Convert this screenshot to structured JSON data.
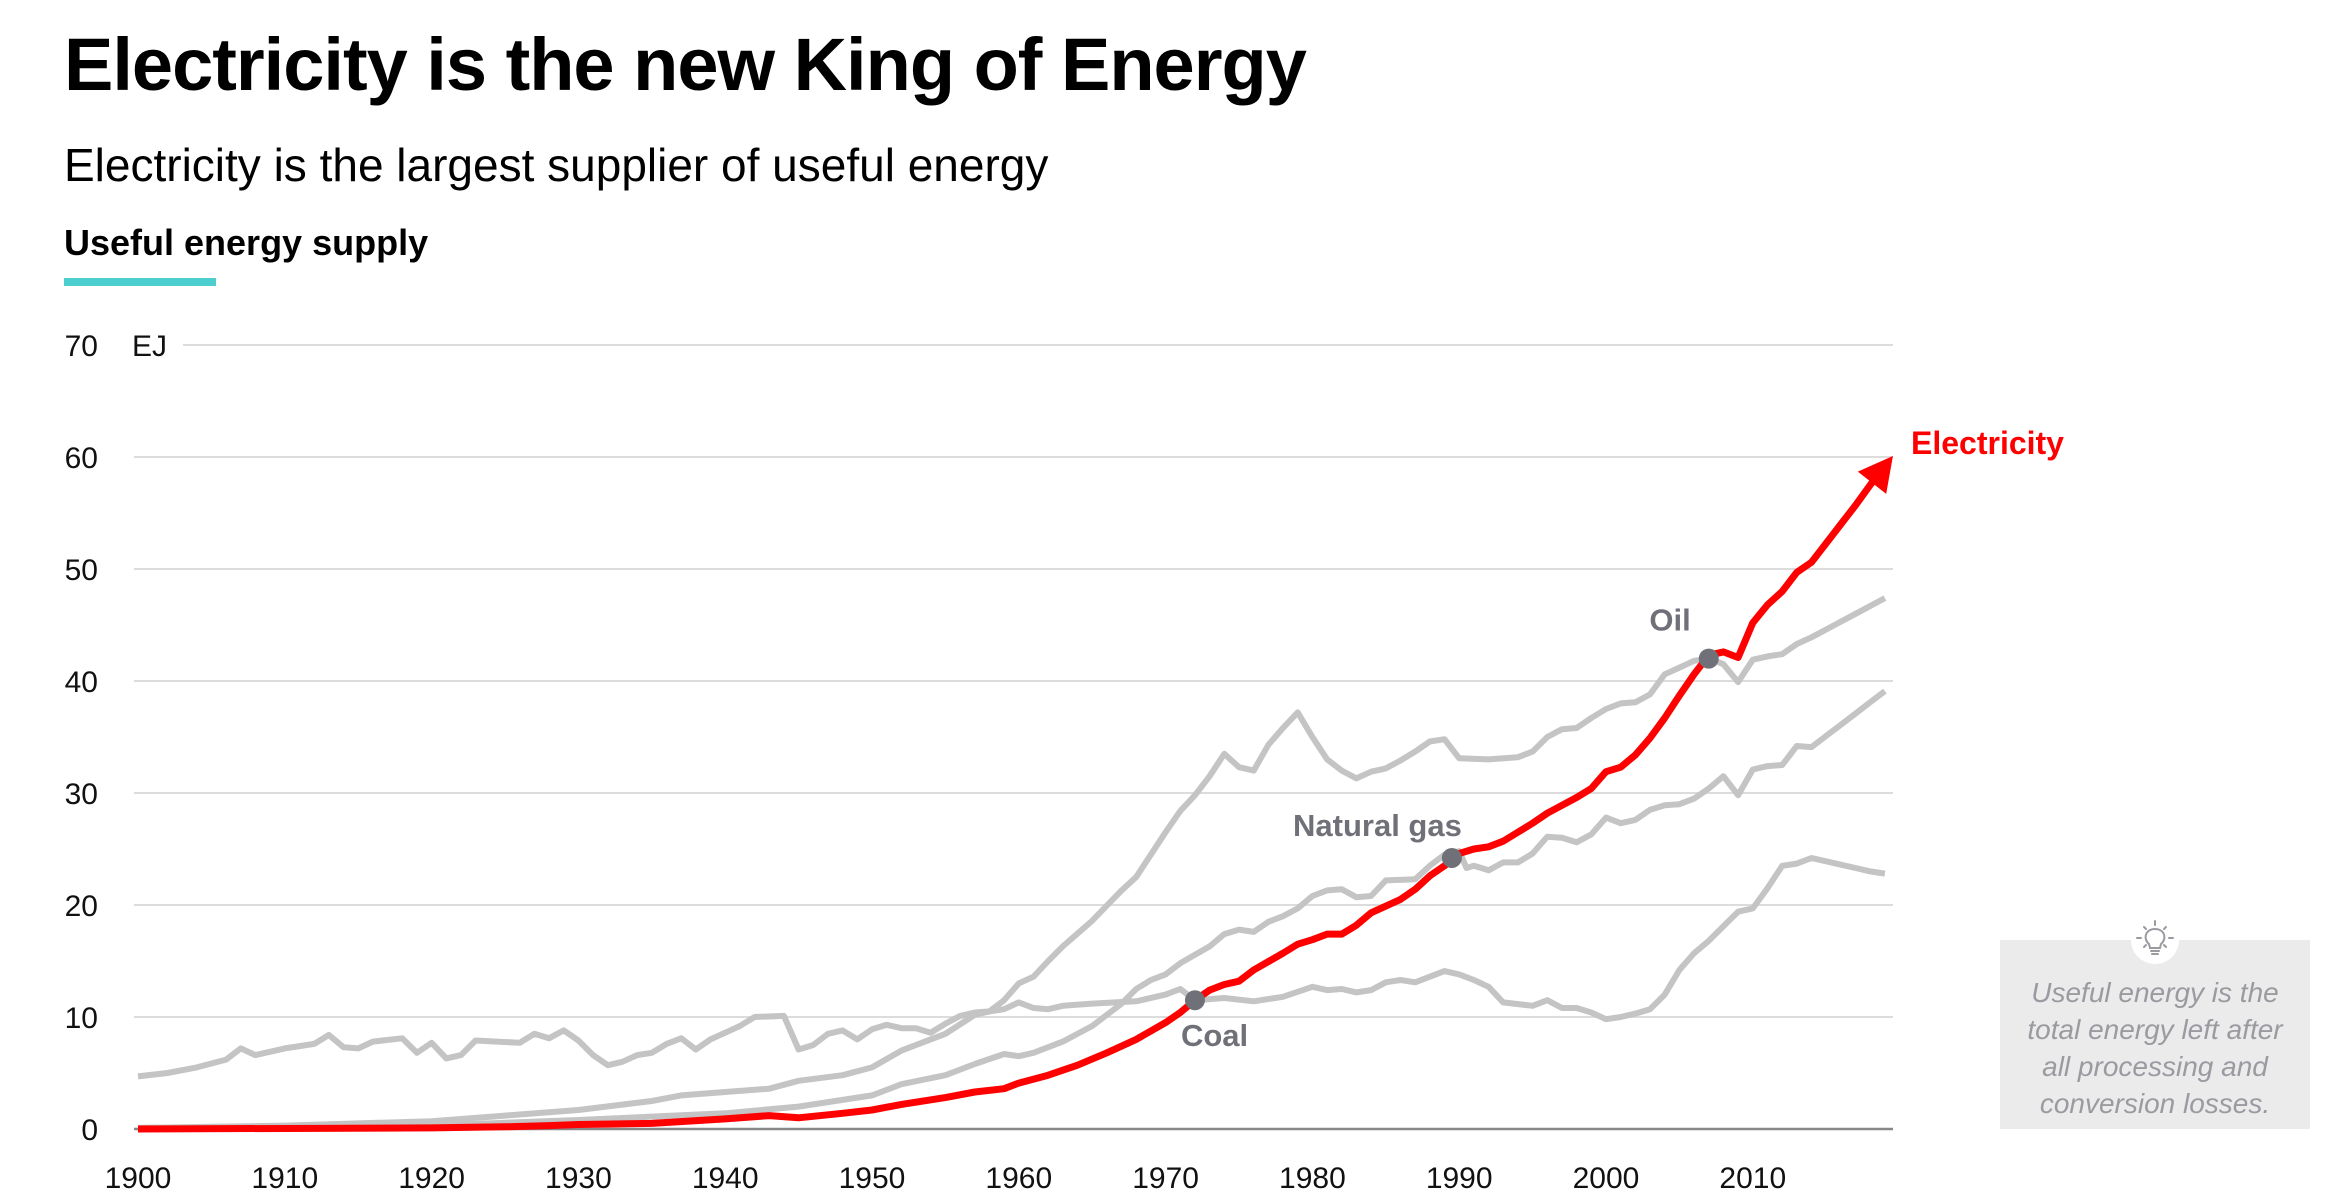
{
  "header": {
    "title": "Electricity is the new King of Energy",
    "subtitle": "Electricity is the largest supplier of useful energy",
    "section": "Useful energy supply"
  },
  "note": {
    "icon": "lightbulb-icon",
    "lines": [
      "Useful energy is the",
      "total energy left after",
      "all processing and",
      "conversion losses."
    ]
  },
  "colors": {
    "accent": "#4ecfcf",
    "electricity": "#ff0000",
    "other": "#c4c4c4",
    "marker": "#707078"
  },
  "chart_data": {
    "type": "line",
    "title": "Useful energy supply",
    "ylabel": "EJ",
    "unit_label": "EJ",
    "xlim": [
      1900,
      2019
    ],
    "ylim": [
      0,
      70
    ],
    "yticks": [
      "0",
      "10",
      "20",
      "30",
      "40",
      "50",
      "60",
      "70"
    ],
    "xticks": [
      "1900",
      "1910",
      "1920",
      "1930",
      "1940",
      "1950",
      "1960",
      "1970",
      "1980",
      "1990",
      "2000",
      "2010"
    ],
    "grid": true,
    "series": [
      {
        "name": "Coal",
        "label": "Coal",
        "marker": [
          1972,
          11.5
        ],
        "points": [
          [
            1900,
            4.7
          ],
          [
            1902,
            5
          ],
          [
            1904,
            5.5
          ],
          [
            1906,
            6.2
          ],
          [
            1907,
            7.2
          ],
          [
            1908,
            6.6
          ],
          [
            1910,
            7.2
          ],
          [
            1912,
            7.6
          ],
          [
            1913,
            8.4
          ],
          [
            1914,
            7.3
          ],
          [
            1915,
            7.2
          ],
          [
            1916,
            7.8
          ],
          [
            1918,
            8.1
          ],
          [
            1919,
            6.8
          ],
          [
            1920,
            7.7
          ],
          [
            1921,
            6.3
          ],
          [
            1922,
            6.6
          ],
          [
            1923,
            7.9
          ],
          [
            1926,
            7.7
          ],
          [
            1927,
            8.5
          ],
          [
            1928,
            8.1
          ],
          [
            1929,
            8.8
          ],
          [
            1930,
            7.9
          ],
          [
            1931,
            6.6
          ],
          [
            1932,
            5.7
          ],
          [
            1933,
            6
          ],
          [
            1934,
            6.6
          ],
          [
            1935,
            6.8
          ],
          [
            1936,
            7.6
          ],
          [
            1937,
            8.1
          ],
          [
            1938,
            7.1
          ],
          [
            1939,
            8
          ],
          [
            1940,
            8.6
          ],
          [
            1941,
            9.2
          ],
          [
            1942,
            10
          ],
          [
            1944,
            10.1
          ],
          [
            1945,
            7.1
          ],
          [
            1946,
            7.5
          ],
          [
            1947,
            8.5
          ],
          [
            1948,
            8.8
          ],
          [
            1949,
            8
          ],
          [
            1950,
            8.9
          ],
          [
            1951,
            9.3
          ],
          [
            1952,
            9.0
          ],
          [
            1953,
            9.0
          ],
          [
            1954,
            8.6
          ],
          [
            1955,
            9.4
          ],
          [
            1956,
            10.1
          ],
          [
            1957,
            10.4
          ],
          [
            1958,
            10.5
          ],
          [
            1959,
            10.7
          ],
          [
            1960,
            11.3
          ],
          [
            1961,
            10.8
          ],
          [
            1962,
            10.7
          ],
          [
            1963,
            11
          ],
          [
            1965,
            11.2
          ],
          [
            1968,
            11.4
          ],
          [
            1970,
            12
          ],
          [
            1971,
            12.5
          ],
          [
            1972,
            11.5
          ],
          [
            1974,
            11.7
          ],
          [
            1976,
            11.4
          ],
          [
            1978,
            11.8
          ],
          [
            1980,
            12.7
          ],
          [
            1981,
            12.4
          ],
          [
            1982,
            12.5
          ],
          [
            1983,
            12.2
          ],
          [
            1984,
            12.4
          ],
          [
            1985,
            13.1
          ],
          [
            1986,
            13.3
          ],
          [
            1987,
            13.1
          ],
          [
            1988,
            13.6
          ],
          [
            1989,
            14.1
          ],
          [
            1990,
            13.8
          ],
          [
            1991,
            13.3
          ],
          [
            1992,
            12.7
          ],
          [
            1993,
            11.3
          ],
          [
            1995,
            11.0
          ],
          [
            1996,
            11.5
          ],
          [
            1997,
            10.8
          ],
          [
            1998,
            10.8
          ],
          [
            1999,
            10.4
          ],
          [
            2000,
            9.8
          ],
          [
            2001,
            10.0
          ],
          [
            2002,
            10.3
          ],
          [
            2003,
            10.7
          ],
          [
            2004,
            12
          ],
          [
            2005,
            14.2
          ],
          [
            2006,
            15.7
          ],
          [
            2007,
            16.8
          ],
          [
            2008,
            18.1
          ],
          [
            2009,
            19.4
          ],
          [
            2010,
            19.7
          ],
          [
            2011,
            21.5
          ],
          [
            2012,
            23.5
          ],
          [
            2013,
            23.7
          ],
          [
            2014,
            24.2
          ],
          [
            2015,
            23.9
          ],
          [
            2016,
            23.6
          ],
          [
            2017,
            23.3
          ],
          [
            2018,
            23.0
          ],
          [
            2019,
            22.8
          ]
        ]
      },
      {
        "name": "Oil",
        "label": "Oil",
        "marker": [
          2007,
          42
        ],
        "points": [
          [
            1900,
            0.1
          ],
          [
            1910,
            0.3
          ],
          [
            1920,
            0.7
          ],
          [
            1925,
            1.2
          ],
          [
            1930,
            1.7
          ],
          [
            1935,
            2.5
          ],
          [
            1937,
            3
          ],
          [
            1940,
            3.3
          ],
          [
            1943,
            3.6
          ],
          [
            1945,
            4.3
          ],
          [
            1948,
            4.8
          ],
          [
            1950,
            5.5
          ],
          [
            1952,
            7
          ],
          [
            1955,
            8.5
          ],
          [
            1957,
            10.2
          ],
          [
            1958,
            10.5
          ],
          [
            1959,
            11.5
          ],
          [
            1960,
            13
          ],
          [
            1961,
            13.6
          ],
          [
            1962,
            15
          ],
          [
            1963,
            16.3
          ],
          [
            1965,
            18.6
          ],
          [
            1967,
            21.3
          ],
          [
            1968,
            22.5
          ],
          [
            1970,
            26.5
          ],
          [
            1971,
            28.4
          ],
          [
            1972,
            29.8
          ],
          [
            1973,
            31.5
          ],
          [
            1974,
            33.5
          ],
          [
            1975,
            32.3
          ],
          [
            1976,
            32
          ],
          [
            1977,
            34.3
          ],
          [
            1978,
            35.8
          ],
          [
            1979,
            37.2
          ],
          [
            1980,
            35
          ],
          [
            1981,
            33
          ],
          [
            1982,
            32
          ],
          [
            1983,
            31.3
          ],
          [
            1984,
            31.9
          ],
          [
            1985,
            32.2
          ],
          [
            1986,
            32.9
          ],
          [
            1987,
            33.7
          ],
          [
            1988,
            34.6
          ],
          [
            1989,
            34.8
          ],
          [
            1990,
            33.1
          ],
          [
            1992,
            33
          ],
          [
            1994,
            33.2
          ],
          [
            1995,
            33.7
          ],
          [
            1996,
            35
          ],
          [
            1997,
            35.7
          ],
          [
            1998,
            35.8
          ],
          [
            1999,
            36.7
          ],
          [
            2000,
            37.5
          ],
          [
            2001,
            38
          ],
          [
            2002,
            38.1
          ],
          [
            2003,
            38.8
          ],
          [
            2004,
            40.6
          ],
          [
            2005,
            41.2
          ],
          [
            2006,
            41.8
          ],
          [
            2007,
            42
          ],
          [
            2008,
            41.5
          ],
          [
            2009,
            39.9
          ],
          [
            2010,
            41.9
          ],
          [
            2011,
            42.2
          ],
          [
            2012,
            42.4
          ],
          [
            2013,
            43.3
          ],
          [
            2014,
            43.9
          ],
          [
            2015,
            44.6
          ],
          [
            2016,
            45.3
          ],
          [
            2017,
            46
          ],
          [
            2018,
            46.7
          ],
          [
            2019,
            47.4
          ]
        ]
      },
      {
        "name": "Natural gas",
        "label": "Natural gas",
        "marker": [
          1989.5,
          24.2
        ],
        "points": [
          [
            1900,
            0.1
          ],
          [
            1920,
            0.3
          ],
          [
            1930,
            0.8
          ],
          [
            1940,
            1.4
          ],
          [
            1945,
            2
          ],
          [
            1950,
            3
          ],
          [
            1952,
            4
          ],
          [
            1955,
            4.8
          ],
          [
            1957,
            5.8
          ],
          [
            1959,
            6.7
          ],
          [
            1960,
            6.5
          ],
          [
            1961,
            6.8
          ],
          [
            1963,
            7.8
          ],
          [
            1965,
            9.2
          ],
          [
            1967,
            11.2
          ],
          [
            1968,
            12.5
          ],
          [
            1969,
            13.3
          ],
          [
            1970,
            13.8
          ],
          [
            1971,
            14.8
          ],
          [
            1973,
            16.3
          ],
          [
            1974,
            17.4
          ],
          [
            1975,
            17.8
          ],
          [
            1976,
            17.6
          ],
          [
            1977,
            18.5
          ],
          [
            1978,
            19
          ],
          [
            1979,
            19.7
          ],
          [
            1980,
            20.8
          ],
          [
            1981,
            21.3
          ],
          [
            1982,
            21.4
          ],
          [
            1983,
            20.7
          ],
          [
            1984,
            20.8
          ],
          [
            1985,
            22.2
          ],
          [
            1987,
            22.3
          ],
          [
            1988,
            23.5
          ],
          [
            1989,
            24.5
          ],
          [
            1990,
            24.8
          ],
          [
            1990.5,
            23.3
          ],
          [
            1991,
            23.5
          ],
          [
            1992,
            23.1
          ],
          [
            1993,
            23.8
          ],
          [
            1994,
            23.8
          ],
          [
            1995,
            24.6
          ],
          [
            1996,
            26.1
          ],
          [
            1997,
            26.0
          ],
          [
            1998,
            25.6
          ],
          [
            1999,
            26.3
          ],
          [
            2000,
            27.8
          ],
          [
            2001,
            27.3
          ],
          [
            2002,
            27.6
          ],
          [
            2003,
            28.5
          ],
          [
            2004,
            28.9
          ],
          [
            2005,
            29.0
          ],
          [
            2006,
            29.5
          ],
          [
            2007,
            30.4
          ],
          [
            2008,
            31.5
          ],
          [
            2009,
            29.8
          ],
          [
            2010,
            32.1
          ],
          [
            2011,
            32.4
          ],
          [
            2012,
            32.5
          ],
          [
            2013,
            34.2
          ],
          [
            2014,
            34.1
          ],
          [
            2015,
            35.1
          ],
          [
            2016,
            36.1
          ],
          [
            2017,
            37.1
          ],
          [
            2018,
            38.1
          ],
          [
            2019,
            39.1
          ]
        ]
      },
      {
        "name": "Electricity",
        "label": "Electricity",
        "highlight": true,
        "points": [
          [
            1900,
            0
          ],
          [
            1920,
            0.1
          ],
          [
            1925,
            0.2
          ],
          [
            1928,
            0.3
          ],
          [
            1930,
            0.4
          ],
          [
            1935,
            0.5
          ],
          [
            1940,
            0.9
          ],
          [
            1943,
            1.2
          ],
          [
            1945,
            1.0
          ],
          [
            1948,
            1.4
          ],
          [
            1950,
            1.7
          ],
          [
            1952,
            2.2
          ],
          [
            1955,
            2.8
          ],
          [
            1957,
            3.3
          ],
          [
            1959,
            3.6
          ],
          [
            1960,
            4.1
          ],
          [
            1962,
            4.8
          ],
          [
            1964,
            5.7
          ],
          [
            1966,
            6.8
          ],
          [
            1968,
            8
          ],
          [
            1970,
            9.5
          ],
          [
            1971,
            10.4
          ],
          [
            1972,
            11.5
          ],
          [
            1973,
            12.4
          ],
          [
            1974,
            12.9
          ],
          [
            1975,
            13.2
          ],
          [
            1976,
            14.2
          ],
          [
            1978,
            15.7
          ],
          [
            1979,
            16.5
          ],
          [
            1980,
            16.9
          ],
          [
            1981,
            17.4
          ],
          [
            1982,
            17.4
          ],
          [
            1983,
            18.2
          ],
          [
            1984,
            19.3
          ],
          [
            1986,
            20.5
          ],
          [
            1987,
            21.4
          ],
          [
            1988,
            22.6
          ],
          [
            1989,
            23.5
          ],
          [
            1990,
            24.6
          ],
          [
            1991,
            25.0
          ],
          [
            1992,
            25.2
          ],
          [
            1993,
            25.7
          ],
          [
            1994,
            26.5
          ],
          [
            1995,
            27.3
          ],
          [
            1996,
            28.2
          ],
          [
            1997,
            28.9
          ],
          [
            1998,
            29.6
          ],
          [
            1999,
            30.4
          ],
          [
            2000,
            31.9
          ],
          [
            2001,
            32.3
          ],
          [
            2002,
            33.4
          ],
          [
            2003,
            34.9
          ],
          [
            2004,
            36.7
          ],
          [
            2005,
            38.7
          ],
          [
            2006,
            40.6
          ],
          [
            2007,
            42.3
          ],
          [
            2008,
            42.6
          ],
          [
            2009,
            42.1
          ],
          [
            2010,
            45.2
          ],
          [
            2011,
            46.8
          ],
          [
            2012,
            48
          ],
          [
            2013,
            49.7
          ],
          [
            2014,
            50.6
          ],
          [
            2015,
            52.3
          ],
          [
            2016,
            54
          ],
          [
            2017,
            55.7
          ],
          [
            2018,
            57.5
          ],
          [
            2019,
            59.2
          ]
        ]
      }
    ]
  }
}
